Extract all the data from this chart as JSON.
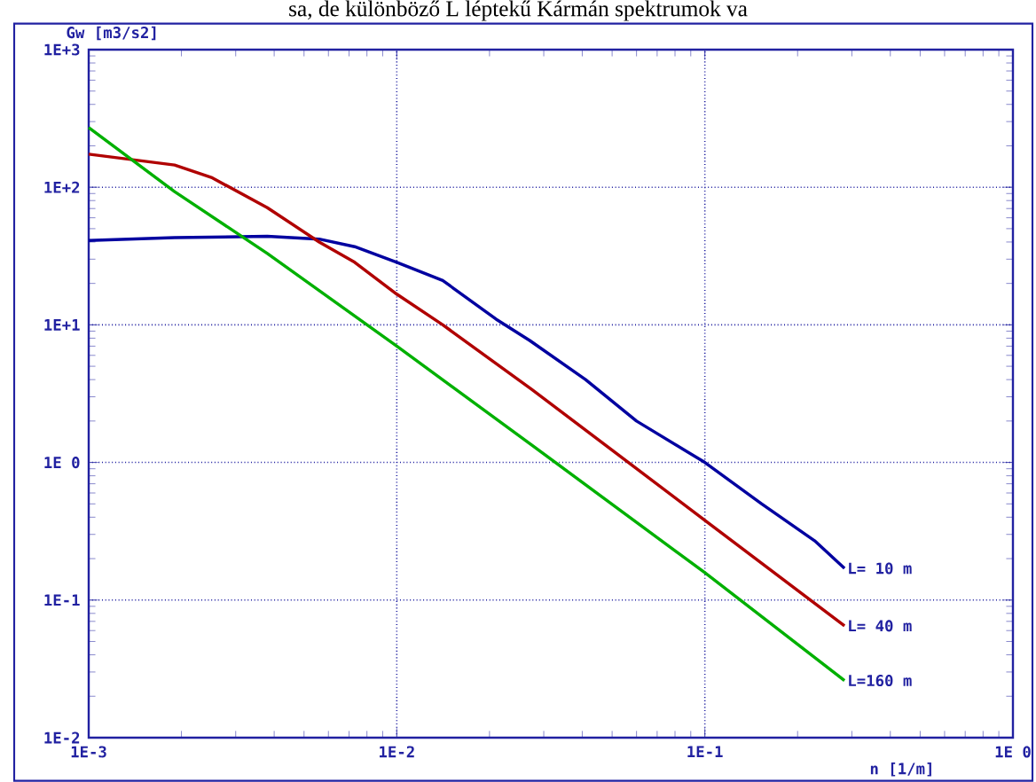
{
  "chart_data": {
    "type": "line",
    "title": "sa, de különböző L léptekű Kármán spektrumok va",
    "xlabel": "n [1/m]",
    "ylabel": "Gw [m3/s2]",
    "log": "xy",
    "grid": true,
    "xlim": [
      0.001,
      1
    ],
    "ylim": [
      0.01,
      1000
    ],
    "xticks": [
      {
        "value": 0.001,
        "label": "1E-3"
      },
      {
        "value": 0.01,
        "label": "1E-2"
      },
      {
        "value": 0.1,
        "label": "1E-1"
      },
      {
        "value": 1,
        "label": "1E 0"
      }
    ],
    "yticks": [
      {
        "value": 0.01,
        "label": "1E-2"
      },
      {
        "value": 0.1,
        "label": "1E-1"
      },
      {
        "value": 1,
        "label": "1E 0"
      },
      {
        "value": 10,
        "label": "1E+1"
      },
      {
        "value": 100,
        "label": "1E+2"
      },
      {
        "value": 1000,
        "label": "1E+3"
      }
    ],
    "series": [
      {
        "name": "L= 10 m",
        "color": "#0000a0",
        "x": [
          0.001,
          0.0019,
          0.0038,
          0.0056,
          0.0073,
          0.01,
          0.0141,
          0.021,
          0.027,
          0.041,
          0.06,
          0.1,
          0.153,
          0.227,
          0.284
        ],
        "values": [
          41,
          43,
          44,
          42,
          37,
          28.5,
          21,
          11,
          7.7,
          4.0,
          2.0,
          1.0,
          0.5,
          0.27,
          0.17
        ]
      },
      {
        "name": "L= 40 m",
        "color": "#b00000",
        "x": [
          0.001,
          0.0019,
          0.0025,
          0.0038,
          0.0056,
          0.0073,
          0.01,
          0.0141,
          0.0274,
          0.1,
          0.284
        ],
        "values": [
          174,
          145,
          118,
          71,
          40,
          28.5,
          16.7,
          10,
          3.4,
          0.38,
          0.065
        ]
      },
      {
        "name": "L=160 m",
        "color": "#00b000",
        "x": [
          0.001,
          0.0019,
          0.0038,
          0.01,
          0.0274,
          0.1,
          0.284
        ],
        "values": [
          271,
          93,
          33,
          7.0,
          1.34,
          0.158,
          0.026
        ]
      }
    ]
  }
}
